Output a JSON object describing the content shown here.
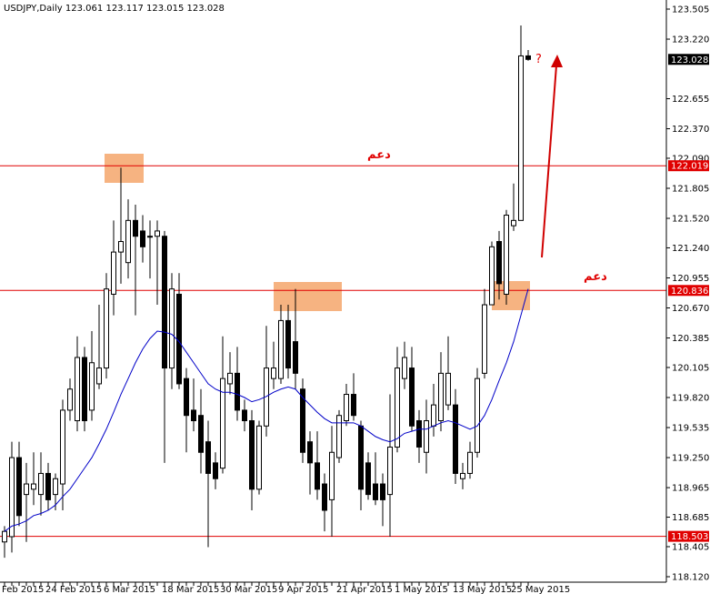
{
  "chart_data": {
    "type": "candlestick",
    "symbol": "USDJPY,Daily",
    "header_ohlc": [
      123.061,
      123.117,
      123.015,
      123.028
    ],
    "categories": [
      "Feb 2015",
      null,
      null,
      null,
      null,
      null,
      "24 Feb 2015",
      null,
      null,
      null,
      null,
      null,
      null,
      null,
      "6 Mar 2015",
      null,
      null,
      null,
      null,
      null,
      null,
      null,
      "18 Mar 2015",
      null,
      null,
      null,
      null,
      null,
      null,
      null,
      "30 Mar 2015",
      null,
      null,
      null,
      null,
      null,
      null,
      null,
      "9 Apr 2015",
      null,
      null,
      null,
      null,
      null,
      null,
      null,
      "21 Apr 2015",
      null,
      null,
      null,
      null,
      null,
      null,
      null,
      "1 May 2015",
      null,
      null,
      null,
      null,
      null,
      null,
      null,
      "13 May 2015",
      null,
      null,
      null,
      null,
      null,
      null,
      null,
      "25 May 2015",
      null,
      null
    ],
    "open": [
      118.45,
      118.5,
      119.25,
      118.9,
      118.95,
      118.9,
      119.1,
      118.9,
      119.0,
      119.7,
      119.6,
      120.2,
      119.7,
      119.95,
      120.1,
      120.8,
      121.2,
      121.1,
      121.5,
      121.4,
      121.35,
      121.35,
      121.35,
      120.1,
      120.8,
      120.0,
      119.7,
      119.65,
      119.4,
      119.2,
      119.15,
      119.95,
      120.05,
      119.7,
      119.6,
      118.95,
      119.55,
      120.0,
      120.0,
      120.55,
      120.35,
      119.9,
      119.4,
      119.2,
      119.0,
      118.85,
      119.25,
      119.6,
      119.85,
      119.55,
      119.2,
      119.0,
      119.0,
      118.9,
      119.35,
      120.0,
      120.1,
      119.6,
      119.3,
      119.55,
      119.6,
      119.75,
      119.75,
      119.05,
      119.1,
      119.3,
      120.05,
      120.7,
      121.3,
      120.8,
      121.45,
      121.5,
      123.061
    ],
    "high": [
      118.6,
      119.4,
      119.4,
      119.2,
      119.3,
      119.3,
      119.2,
      119.1,
      119.8,
      120.0,
      120.4,
      120.3,
      120.45,
      120.7,
      121.0,
      121.5,
      122.0,
      121.7,
      121.65,
      121.55,
      121.5,
      121.5,
      121.4,
      121.0,
      121.0,
      120.1,
      120.0,
      119.9,
      119.6,
      119.3,
      120.4,
      120.25,
      120.3,
      119.8,
      119.7,
      119.6,
      120.5,
      120.35,
      120.7,
      120.7,
      120.85,
      120.0,
      119.5,
      119.5,
      119.1,
      119.55,
      119.7,
      119.95,
      120.05,
      119.6,
      119.3,
      119.3,
      119.1,
      119.85,
      120.3,
      120.35,
      120.3,
      119.7,
      119.8,
      119.95,
      120.25,
      120.4,
      119.9,
      119.2,
      119.4,
      120.1,
      120.85,
      121.3,
      121.4,
      121.6,
      121.85,
      123.35,
      123.117
    ],
    "low": [
      118.3,
      118.35,
      118.6,
      118.45,
      118.8,
      118.7,
      118.75,
      118.75,
      118.75,
      119.6,
      119.5,
      119.5,
      119.6,
      119.9,
      120.0,
      120.6,
      120.9,
      120.95,
      120.6,
      121.1,
      120.95,
      120.7,
      119.2,
      119.9,
      119.9,
      119.3,
      119.5,
      119.1,
      118.4,
      118.95,
      119.1,
      119.85,
      119.6,
      119.5,
      118.75,
      118.9,
      119.45,
      119.9,
      119.95,
      120.0,
      119.9,
      119.2,
      118.9,
      118.85,
      118.55,
      118.5,
      119.2,
      119.55,
      119.6,
      118.75,
      118.85,
      118.8,
      118.6,
      118.5,
      119.3,
      119.9,
      119.5,
      119.2,
      119.1,
      119.45,
      119.5,
      119.7,
      119.0,
      118.95,
      119.05,
      119.25,
      120.0,
      120.7,
      120.75,
      120.7,
      121.4,
      121.5,
      123.015
    ],
    "close": [
      118.55,
      119.25,
      118.7,
      119.0,
      119.0,
      119.1,
      118.85,
      119.05,
      119.7,
      119.9,
      120.2,
      119.6,
      120.15,
      120.1,
      120.85,
      121.2,
      121.3,
      121.5,
      121.35,
      121.25,
      121.35,
      121.4,
      120.1,
      120.85,
      119.95,
      119.65,
      119.6,
      119.3,
      119.1,
      119.05,
      120.0,
      120.05,
      119.7,
      119.6,
      118.95,
      119.55,
      120.1,
      120.1,
      120.55,
      120.1,
      120.05,
      119.3,
      119.2,
      118.95,
      118.75,
      119.3,
      119.65,
      119.85,
      119.65,
      118.95,
      118.9,
      118.85,
      118.85,
      119.35,
      120.1,
      120.2,
      119.55,
      119.35,
      119.6,
      119.75,
      120.05,
      120.05,
      119.1,
      119.1,
      119.3,
      120.0,
      120.7,
      121.25,
      120.9,
      121.55,
      121.5,
      123.061,
      123.028
    ],
    "bull_color": "#ffffff",
    "bear_color": "#000000",
    "ma_color": "#0000c8",
    "ma_values": [
      118.55,
      118.6,
      118.62,
      118.65,
      118.7,
      118.72,
      118.75,
      118.8,
      118.88,
      118.95,
      119.05,
      119.15,
      119.25,
      119.38,
      119.52,
      119.68,
      119.85,
      120.0,
      120.15,
      120.28,
      120.38,
      120.45,
      120.44,
      120.42,
      120.35,
      120.25,
      120.15,
      120.05,
      119.95,
      119.9,
      119.87,
      119.87,
      119.85,
      119.82,
      119.78,
      119.8,
      119.83,
      119.87,
      119.9,
      119.92,
      119.9,
      119.82,
      119.75,
      119.68,
      119.62,
      119.58,
      119.58,
      119.58,
      119.58,
      119.55,
      119.5,
      119.45,
      119.42,
      119.4,
      119.43,
      119.48,
      119.5,
      119.52,
      119.52,
      119.55,
      119.58,
      119.6,
      119.58,
      119.55,
      119.52,
      119.55,
      119.65,
      119.8,
      119.98,
      120.15,
      120.35,
      120.6,
      120.85
    ],
    "hlines": [
      122.019,
      120.836,
      118.503
    ],
    "hline_color": "#e00000",
    "last_price": 123.028,
    "annotations": [
      "دعم",
      "دعم",
      "?"
    ],
    "ylim": [
      118.12,
      123.505
    ],
    "yticks": [
      123.505,
      {
        "value": 123.22,
        "label": "123.220"
      },
      122.655,
      {
        "value": 122.37,
        "label": "122.370"
      },
      {
        "value": 122.09,
        "label": "122.090"
      },
      121.805,
      {
        "value": 121.52,
        "label": "121.520"
      },
      {
        "value": 121.24,
        "label": "121.240"
      },
      120.955,
      {
        "value": 120.67,
        "label": "120.670"
      },
      120.385,
      120.105,
      {
        "value": 119.82,
        "label": "119.820"
      },
      119.535,
      {
        "value": 119.25,
        "label": "119.250"
      },
      118.965,
      118.685,
      118.405,
      {
        "value": 118.12,
        "label": "118.120"
      }
    ]
  }
}
